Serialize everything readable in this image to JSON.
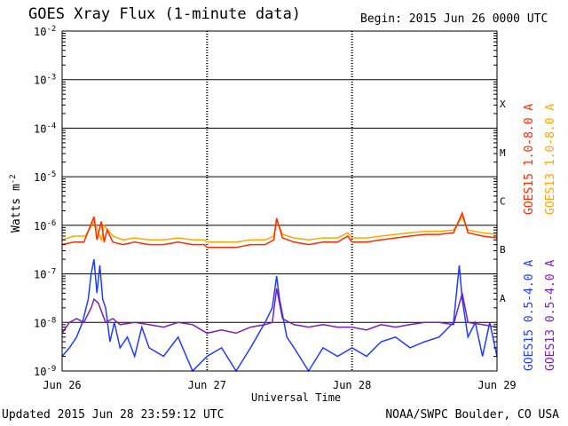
{
  "title": "GOES Xray Flux (1-minute data)",
  "begin": "Begin:  2015 Jun 26 0000 UTC",
  "updated": "Updated 2015 Jun 28 23:59:12 UTC",
  "credit": "NOAA/SWPC Boulder, CO USA",
  "chart_data": {
    "type": "line",
    "title": "GOES Xray Flux (1-minute data)",
    "xlabel": "Universal Time",
    "ylabel": "Watts m",
    "ylabel_sup": "-2",
    "yscale": "log",
    "ylim": [
      1e-09,
      0.01
    ],
    "xlim": [
      0,
      3
    ],
    "grid": true,
    "x_ticks": [
      {
        "x": 0,
        "label": "Jun 26"
      },
      {
        "x": 1,
        "label": "Jun 27"
      },
      {
        "x": 2,
        "label": "Jun 28"
      },
      {
        "x": 3,
        "label": "Jun 29"
      }
    ],
    "y_ticks": [
      {
        "exp": -2,
        "label": "-2"
      },
      {
        "exp": -3,
        "label": "-3"
      },
      {
        "exp": -4,
        "label": "-4"
      },
      {
        "exp": -5,
        "label": "-5"
      },
      {
        "exp": -6,
        "label": "-6"
      },
      {
        "exp": -7,
        "label": "-7"
      },
      {
        "exp": -8,
        "label": "-8"
      },
      {
        "exp": -9,
        "label": "-9"
      }
    ],
    "flare_classes": [
      {
        "label": "X",
        "value": 0.0001
      },
      {
        "label": "M",
        "value": 1e-05
      },
      {
        "label": "C",
        "value": 1e-06
      },
      {
        "label": "B",
        "value": 1e-07
      },
      {
        "label": "A",
        "value": 1e-08
      }
    ],
    "legend": [
      {
        "label": "GOES15 1.0-8.0 A",
        "color": "#ff2a00"
      },
      {
        "label": "GOES13 1.0-8.0 A",
        "color": "#ffa500"
      },
      {
        "label": "GOES15 0.5-4.0 A",
        "color": "#1e3cff"
      },
      {
        "label": "GOES13 0.5-4.0 A",
        "color": "#7a1fb8"
      }
    ],
    "series": [
      {
        "name": "GOES13 1.0-8.0 A",
        "color": "#ffa500",
        "x": [
          0,
          0.08,
          0.16,
          0.22,
          0.27,
          0.29,
          0.35,
          0.42,
          0.5,
          0.6,
          0.7,
          0.8,
          0.9,
          0.98,
          1.0,
          1.1,
          1.2,
          1.3,
          1.4,
          1.46,
          1.48,
          1.52,
          1.6,
          1.7,
          1.8,
          1.9,
          1.97,
          2.0,
          2.1,
          2.2,
          2.3,
          2.4,
          2.5,
          2.6,
          2.7,
          2.76,
          2.8,
          2.9,
          3.0
        ],
        "y": [
          5e-07,
          6e-07,
          6e-07,
          1.2e-06,
          5e-07,
          1e-06,
          6e-07,
          5e-07,
          5.5e-07,
          5e-07,
          5e-07,
          5.5e-07,
          5e-07,
          5e-07,
          4.5e-07,
          4.5e-07,
          4.5e-07,
          5e-07,
          5e-07,
          6e-07,
          1.3e-06,
          6.5e-07,
          5.5e-07,
          5e-07,
          5.5e-07,
          5.5e-07,
          7e-07,
          5.5e-07,
          5.5e-07,
          6e-07,
          6.5e-07,
          7e-07,
          7.5e-07,
          7.5e-07,
          8e-07,
          1.5e-06,
          8e-07,
          7e-07,
          6.5e-07
        ]
      },
      {
        "name": "GOES15 1.0-8.0 A",
        "color": "#ff2a00",
        "x": [
          0,
          0.08,
          0.15,
          0.22,
          0.24,
          0.27,
          0.29,
          0.31,
          0.35,
          0.42,
          0.5,
          0.6,
          0.7,
          0.8,
          0.9,
          0.98,
          1.0,
          1.1,
          1.2,
          1.3,
          1.4,
          1.46,
          1.48,
          1.52,
          1.6,
          1.7,
          1.8,
          1.9,
          1.97,
          2.0,
          2.1,
          2.2,
          2.3,
          2.4,
          2.5,
          2.6,
          2.7,
          2.76,
          2.8,
          2.9,
          3.0
        ],
        "y": [
          4e-07,
          4.5e-07,
          4.5e-07,
          1.5e-06,
          5e-07,
          1.2e-06,
          4.5e-07,
          8e-07,
          4.5e-07,
          4e-07,
          4.5e-07,
          4e-07,
          4e-07,
          4.5e-07,
          4e-07,
          4e-07,
          3.5e-07,
          3.5e-07,
          3.5e-07,
          4e-07,
          4e-07,
          5e-07,
          1.4e-06,
          5.5e-07,
          4.5e-07,
          4e-07,
          4.5e-07,
          4.5e-07,
          6e-07,
          4.5e-07,
          4.5e-07,
          5e-07,
          5.5e-07,
          6e-07,
          6.5e-07,
          6.5e-07,
          7e-07,
          1.8e-06,
          7e-07,
          6e-07,
          5.5e-07
        ]
      },
      {
        "name": "GOES15 0.5-4.0 A",
        "color": "#1e3cff",
        "x": [
          0,
          0.05,
          0.1,
          0.14,
          0.18,
          0.2,
          0.22,
          0.24,
          0.26,
          0.28,
          0.3,
          0.33,
          0.36,
          0.4,
          0.45,
          0.5,
          0.55,
          0.6,
          0.7,
          0.8,
          0.9,
          1.0,
          1.1,
          1.2,
          1.3,
          1.4,
          1.45,
          1.48,
          1.5,
          1.55,
          1.6,
          1.7,
          1.8,
          1.9,
          2.0,
          2.1,
          2.2,
          2.3,
          2.4,
          2.5,
          2.6,
          2.7,
          2.74,
          2.76,
          2.8,
          2.85,
          2.9,
          2.95,
          3.0
        ],
        "y": [
          2e-09,
          3e-09,
          5e-09,
          1e-08,
          3e-08,
          1e-07,
          2e-07,
          4e-08,
          1.5e-07,
          3e-08,
          2e-08,
          4e-09,
          1e-08,
          3e-09,
          5e-09,
          2e-09,
          8e-09,
          3e-09,
          2e-09,
          5e-09,
          1e-09,
          2e-09,
          3e-09,
          1e-09,
          3e-09,
          1e-08,
          2e-08,
          9e-08,
          3e-08,
          5e-09,
          3e-09,
          1e-09,
          3e-09,
          2e-09,
          3e-09,
          2e-09,
          4e-09,
          5e-09,
          3e-09,
          4e-09,
          5e-09,
          1e-08,
          1.5e-07,
          3e-08,
          5e-09,
          1e-08,
          2e-09,
          1e-08,
          2e-09
        ]
      },
      {
        "name": "GOES13 0.5-4.0 A",
        "color": "#7a1fb8",
        "x": [
          0,
          0.05,
          0.1,
          0.15,
          0.2,
          0.22,
          0.25,
          0.3,
          0.35,
          0.4,
          0.5,
          0.6,
          0.7,
          0.8,
          0.9,
          1.0,
          1.1,
          1.2,
          1.3,
          1.4,
          1.45,
          1.48,
          1.52,
          1.6,
          1.7,
          1.8,
          1.9,
          2.0,
          2.1,
          2.2,
          2.3,
          2.4,
          2.5,
          2.6,
          2.7,
          2.76,
          2.8,
          2.9,
          3.0
        ],
        "y": [
          6e-09,
          1e-08,
          1.2e-08,
          1e-08,
          2e-08,
          3e-08,
          2.5e-08,
          1e-08,
          1.2e-08,
          9e-09,
          1e-08,
          9e-09,
          8e-09,
          1e-08,
          9e-09,
          6e-09,
          7e-09,
          6e-09,
          8e-09,
          9e-09,
          1e-08,
          5e-08,
          1.2e-08,
          9e-09,
          8e-09,
          9e-09,
          8e-09,
          8e-09,
          7e-09,
          9e-09,
          8e-09,
          9e-09,
          1e-08,
          1e-08,
          9e-09,
          4e-08,
          1e-08,
          9e-09,
          8e-09
        ]
      }
    ]
  }
}
